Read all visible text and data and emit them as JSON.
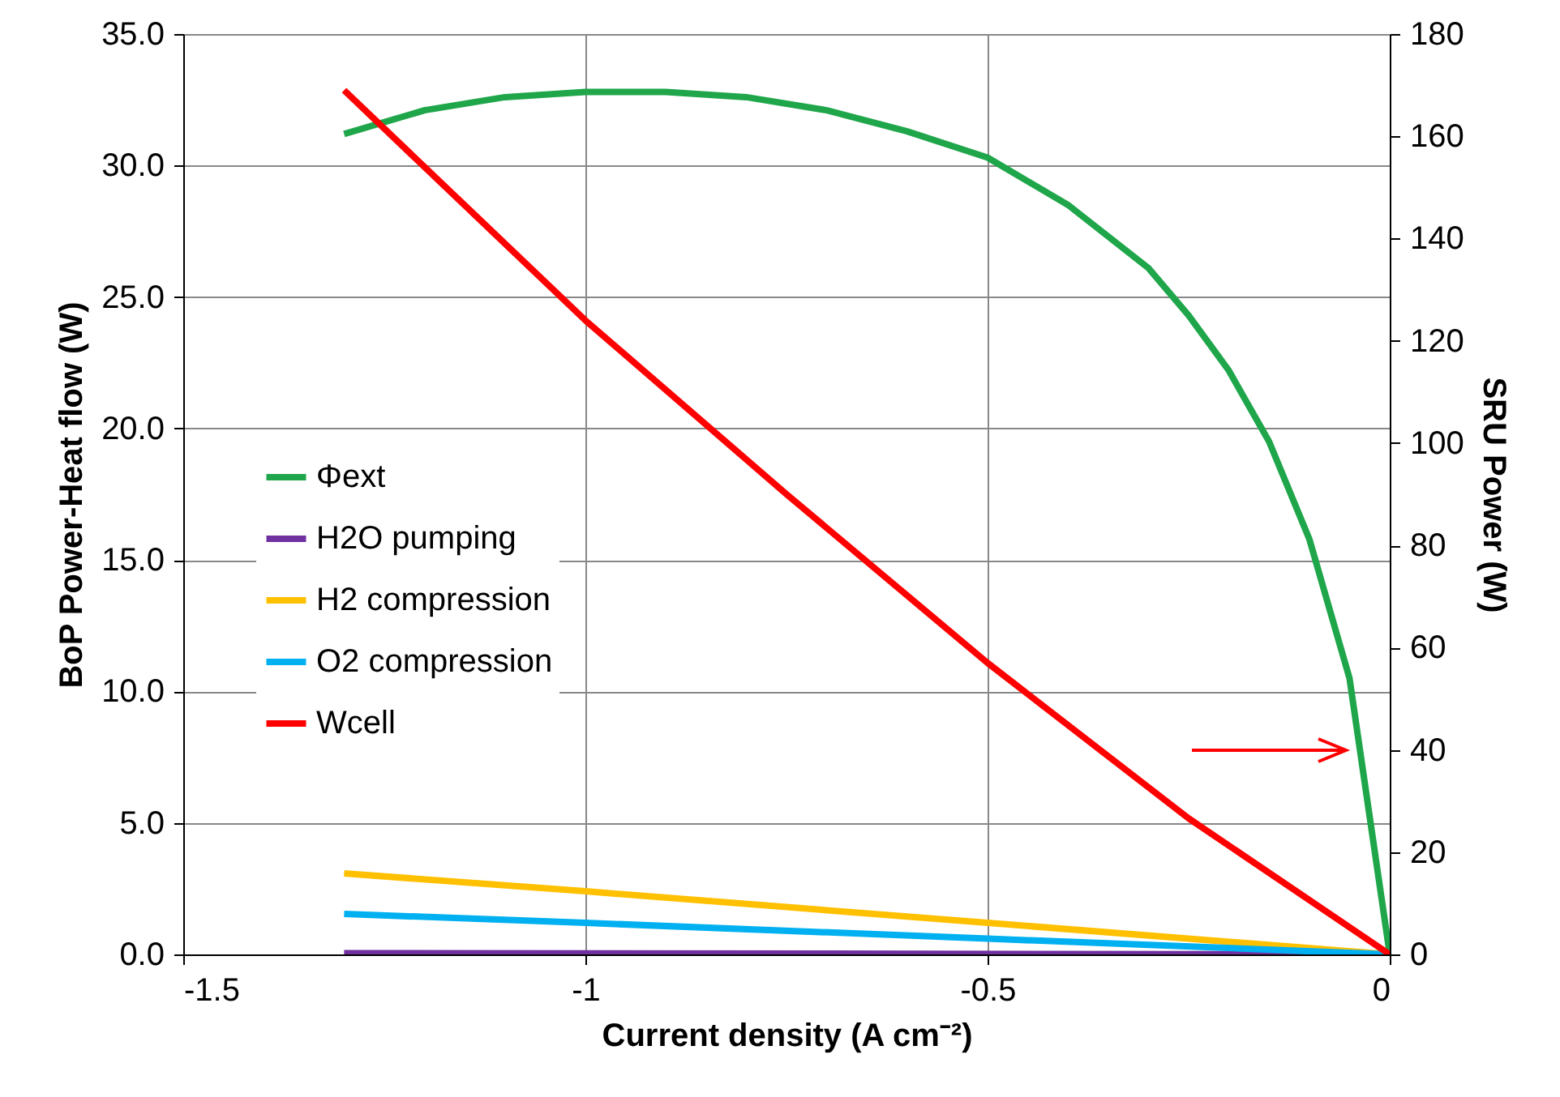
{
  "chart_data": {
    "type": "line",
    "xlabel": "Current density (A cm⁻²)",
    "ylabel": "BoP Power-Heat flow (W)",
    "y2label": "SRU Power (W)",
    "xlim": [
      -1.5,
      0
    ],
    "xticks": [
      -1.5,
      -1,
      -0.5,
      0
    ],
    "ylim": [
      0,
      35
    ],
    "yticks": [
      {
        "value": 0,
        "label": "0.0"
      },
      {
        "value": 5,
        "label": "5.0"
      },
      {
        "value": 10,
        "label": "10.0"
      },
      {
        "value": 15,
        "label": "15.0"
      },
      {
        "value": 20,
        "label": "20.0"
      },
      {
        "value": 25,
        "label": "25.0"
      },
      {
        "value": 30,
        "label": "30.0"
      },
      {
        "value": 35,
        "label": "35.0"
      }
    ],
    "y2lim": [
      0,
      180
    ],
    "y2ticks": [
      0,
      20,
      40,
      60,
      80,
      100,
      120,
      140,
      160,
      180
    ],
    "grid": true,
    "legend": "left",
    "marker": "none",
    "line_style": "solid",
    "series": [
      {
        "name": "Φext",
        "color": "#1fa64a",
        "x": [
          -1.3,
          -1.2,
          -1.1,
          -1,
          -0.9,
          -0.8,
          -0.7,
          -0.6,
          -0.5,
          -0.4,
          -0.3,
          -0.25,
          -0.2,
          -0.15,
          -0.1,
          -0.05,
          0
        ],
        "values": [
          31.2,
          32.1,
          32.6,
          32.8,
          32.8,
          32.6,
          32.1,
          31.3,
          30.3,
          28.5,
          26.1,
          24.3,
          22.2,
          19.5,
          15.8,
          10.5,
          0
        ]
      },
      {
        "name": "H2O pumping",
        "color": "#7030a0",
        "x": [
          -1.3,
          0
        ],
        "values": [
          0.05,
          0
        ]
      },
      {
        "name": "H2 compression",
        "color": "#ffc000",
        "x": [
          -1.3,
          -1,
          -0.5,
          0
        ],
        "values": [
          3.08,
          2.4,
          1.2,
          0
        ]
      },
      {
        "name": "O2 compression",
        "color": "#00b0f0",
        "x": [
          -1.3,
          -1,
          -0.5,
          0
        ],
        "values": [
          1.54,
          1.2,
          0.6,
          0
        ]
      },
      {
        "name": "Wcell",
        "color": "#ff0000",
        "axis": "y2",
        "x": [
          -1.3,
          -1,
          -0.75,
          -0.5,
          -0.25,
          0
        ],
        "values": [
          169,
          124,
          90,
          57,
          26.6,
          0
        ]
      }
    ]
  }
}
